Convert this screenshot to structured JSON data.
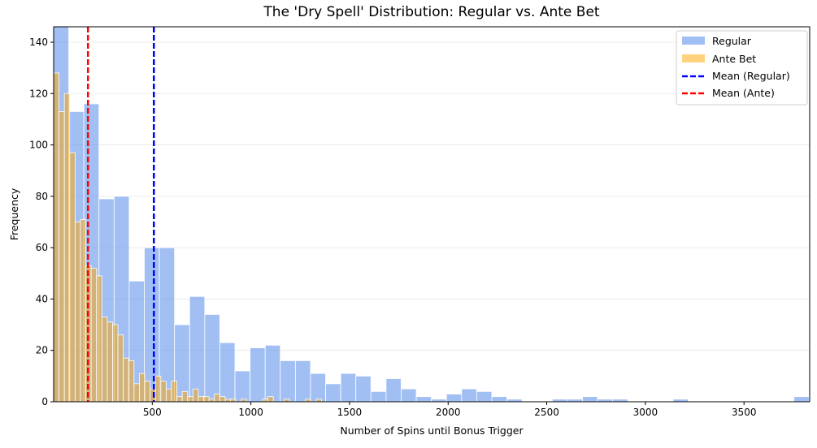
{
  "chart_data": {
    "type": "bar",
    "subtype": "overlaid-histogram",
    "title": "The 'Dry Spell' Distribution: Regular vs. Ante Bet",
    "xlabel": "Number of Spins until Bonus Trigger",
    "ylabel": "Frequency",
    "xlim": [
      0,
      3833
    ],
    "ylim": [
      0,
      146
    ],
    "xticks": [
      500,
      1000,
      1500,
      2000,
      2500,
      3000,
      3500
    ],
    "yticks": [
      0,
      20,
      40,
      60,
      80,
      100,
      120,
      140
    ],
    "grid": "y",
    "legend_position": "top-right",
    "series": [
      {
        "name": "Regular",
        "color": "#6495ED",
        "opacity": 0.6,
        "bin_range": [
          0,
          3830
        ],
        "values": [
          146,
          113,
          116,
          79,
          80,
          47,
          60,
          60,
          30,
          41,
          34,
          23,
          12,
          21,
          22,
          16,
          16,
          11,
          7,
          11,
          10,
          4,
          9,
          5,
          2,
          1,
          3,
          5,
          4,
          2,
          1,
          0,
          0,
          1,
          1,
          2,
          1,
          1,
          0,
          0,
          0,
          1,
          0,
          0,
          0,
          0,
          0,
          0,
          0,
          2
        ]
      },
      {
        "name": "Ante Bet",
        "color": "#FFA500",
        "opacity": 0.5,
        "bin_range": [
          0,
          1358
        ],
        "values": [
          128,
          113,
          120,
          97,
          70,
          71,
          53,
          52,
          49,
          33,
          31,
          30,
          26,
          17,
          16,
          7,
          11,
          8,
          5,
          10,
          8,
          5,
          8,
          2,
          4,
          2,
          5,
          2,
          2,
          1,
          3,
          2,
          1,
          1,
          0,
          1,
          0,
          0,
          0,
          1,
          2,
          0,
          0,
          1,
          0,
          0,
          0,
          1,
          0,
          1
        ]
      }
    ],
    "vlines": [
      {
        "name": "Mean (Regular)",
        "x": 508,
        "color": "#0000FF",
        "style": "dashed"
      },
      {
        "name": "Mean (Ante)",
        "x": 174,
        "color": "#FF0000",
        "style": "dashed"
      }
    ]
  }
}
